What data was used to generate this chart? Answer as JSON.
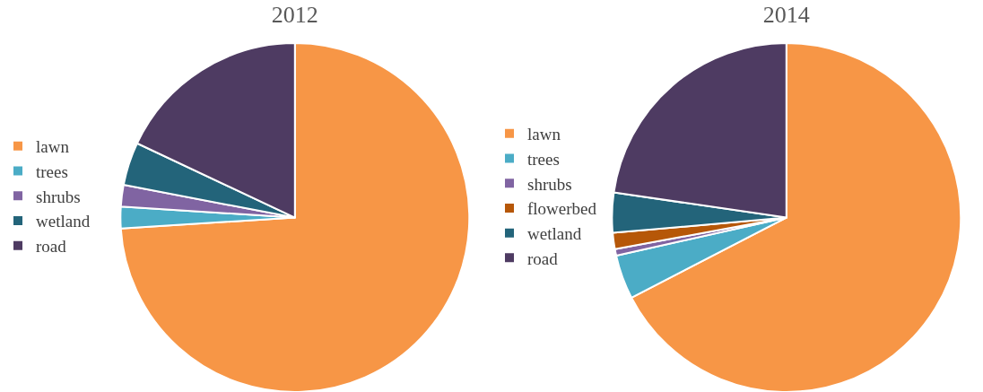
{
  "chart_data": [
    {
      "type": "pie",
      "title": "2012",
      "categories": [
        "lawn",
        "trees",
        "shrubs",
        "wetland",
        "road"
      ],
      "values": [
        74,
        2,
        2,
        4,
        18
      ],
      "colors": [
        "#f79646",
        "#4bacc6",
        "#8064a2",
        "#23647a",
        "#4e3b62"
      ],
      "legend": "left"
    },
    {
      "type": "pie",
      "title": "2014",
      "categories": [
        "lawn",
        "trees",
        "shrubs",
        "flowerbed",
        "wetland",
        "road"
      ],
      "values": [
        67.4,
        4.1,
        0.6,
        1.5,
        3.7,
        22.7
      ],
      "colors": [
        "#f79646",
        "#4bacc6",
        "#8064a2",
        "#b65708",
        "#23647a",
        "#4e3b62"
      ],
      "legend": "left"
    }
  ]
}
